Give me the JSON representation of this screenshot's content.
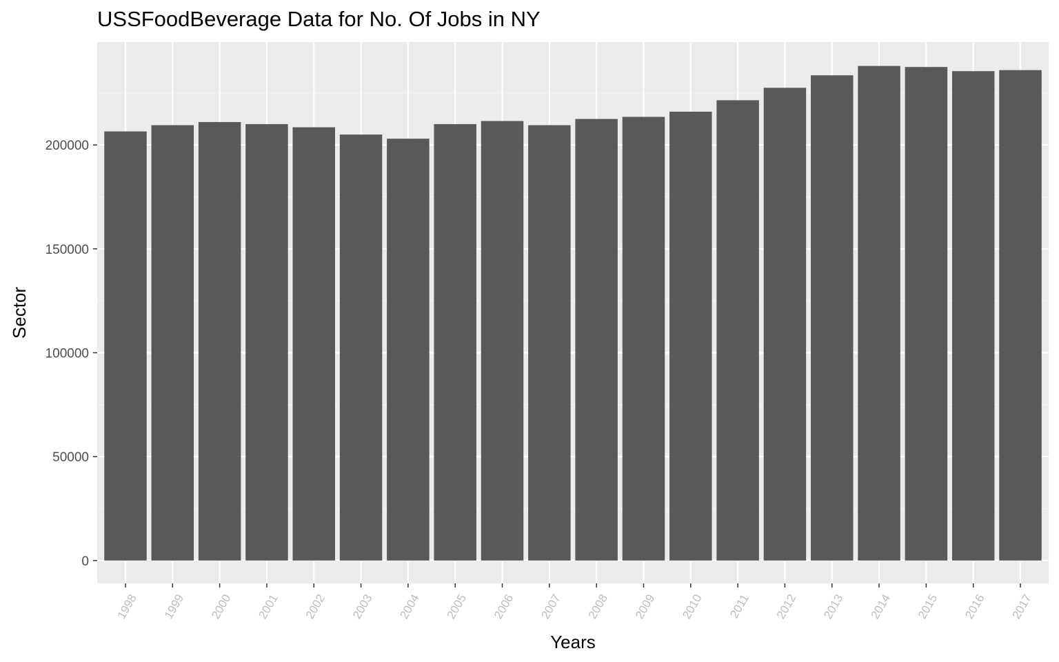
{
  "chart_data": {
    "type": "bar",
    "title": "USSFoodBeverage Data for No. Of Jobs  in NY",
    "xlabel": "Years",
    "ylabel": "Sector",
    "categories": [
      "1998",
      "1999",
      "2000",
      "2001",
      "2002",
      "2003",
      "2004",
      "2005",
      "2006",
      "2007",
      "2008",
      "2009",
      "2010",
      "2011",
      "2012",
      "2013",
      "2014",
      "2015",
      "2016",
      "2017"
    ],
    "values": [
      206500,
      209500,
      211000,
      210000,
      208500,
      205000,
      203000,
      210000,
      211500,
      209500,
      212500,
      213500,
      216000,
      221500,
      227500,
      233500,
      238000,
      237500,
      235500,
      236000
    ],
    "yticks": [
      "0",
      "50000",
      "100000",
      "150000",
      "200000"
    ],
    "ylim": [
      -11000,
      249500
    ],
    "grid": true,
    "legend": "none",
    "colors": {
      "bar": "#595959",
      "panel": "#ebebeb",
      "grid_major": "#ffffff",
      "grid_minor": "#f5f5f5"
    }
  }
}
